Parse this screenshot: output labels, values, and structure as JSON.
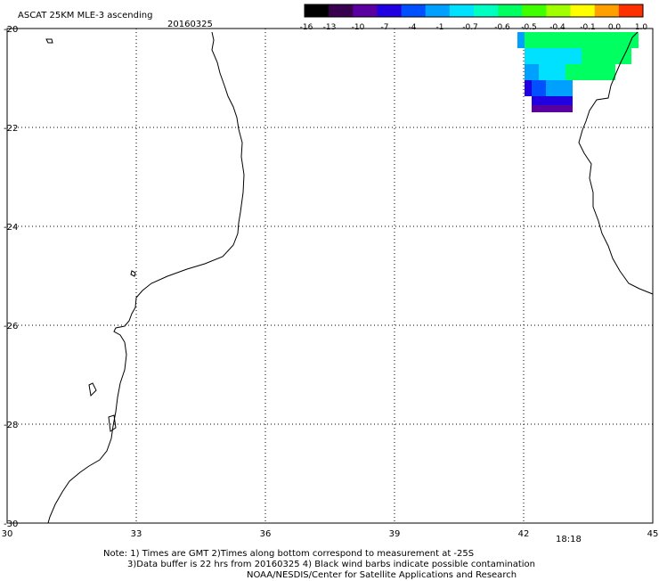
{
  "title": "ASCAT 25KM MLE-3 ascending",
  "date": "20160325",
  "colorbar": {
    "tick_labels": [
      "-16",
      "-13",
      "-10",
      "-7",
      "-4",
      "-1",
      "-0.7",
      "-0.6",
      "-0.5",
      "-0.4",
      "-0.1",
      "0.0",
      "1.0"
    ],
    "colors": [
      "#000000",
      "#3a0050",
      "#5a00a0",
      "#2000e0",
      "#0050ff",
      "#00a0ff",
      "#00e0ff",
      "#00ffc0",
      "#00ff60",
      "#40ff00",
      "#a0ff00",
      "#ffff00",
      "#ffa000",
      "#ff3000"
    ]
  },
  "map": {
    "lon_range": [
      30,
      45
    ],
    "lat_range": [
      -30,
      -20
    ],
    "x_ticks": [
      "30",
      "33",
      "36",
      "39",
      "42",
      "45"
    ],
    "y_ticks": [
      "-20",
      "-22",
      "-24",
      "-26",
      "-28",
      "-30"
    ],
    "grid": "dotted",
    "coast_color": "#000000"
  },
  "time_label": "18:18",
  "time_color": "#d00000",
  "notes": {
    "line1": "Note: 1) Times are GMT 2)Times along bottom correspond to measurement at -25S",
    "line2": "3)Data buffer is 22 hrs from 20160325 4) Black wind barbs indicate possible contamination",
    "line3": "NOAA/NESDIS/Center for Satellite Applications and Research"
  }
}
